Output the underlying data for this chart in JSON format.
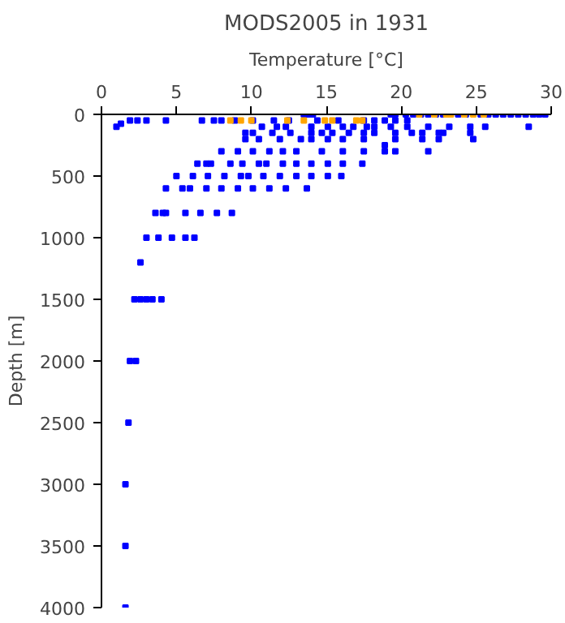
{
  "chart_data": {
    "type": "scatter",
    "title": "MODS2005 in 1931",
    "xlabel": "Temperature [°C]",
    "ylabel": "Depth [m]",
    "xlim": [
      0,
      30
    ],
    "xticks": [
      0,
      5,
      10,
      15,
      20,
      25,
      30
    ],
    "ylim": [
      4000,
      0
    ],
    "yticks": [
      0,
      500,
      1000,
      1500,
      2000,
      2500,
      3000,
      3500,
      4000
    ],
    "grid": false,
    "marker": "square",
    "series": [
      {
        "color": "#0000ff",
        "x": [
          13.5,
          13.8,
          14.1,
          19.3,
          19.6,
          20.3,
          20.8,
          21.3,
          21.8,
          22.3,
          22.8,
          23.8,
          24.3,
          25.3,
          25.8,
          26.3,
          26.8,
          27.3,
          27.8,
          28.3,
          28.8,
          29.2,
          29.6,
          1.0,
          1.3,
          1.9,
          2.4,
          3.0,
          4.3,
          6.7,
          7.5,
          8.0,
          8.9,
          10.1,
          11.5,
          12.5,
          14.4,
          15.8,
          17.5,
          18.2,
          18.9,
          19.6,
          20.4,
          10.7,
          11.7,
          12.3,
          14.0,
          15.1,
          16.1,
          16.8,
          17.7,
          18.2,
          19.3,
          20.4,
          21.8,
          23.2,
          24.6,
          25.6,
          28.5,
          9.6,
          10.1,
          11.4,
          12.6,
          14.0,
          14.7,
          15.4,
          16.5,
          17.5,
          18.2,
          19.6,
          20.7,
          21.4,
          22.5,
          22.8,
          24.6,
          9.6,
          10.5,
          11.9,
          13.3,
          14.0,
          15.1,
          16.1,
          17.5,
          19.6,
          21.4,
          22.5,
          24.8,
          18.9,
          8.0,
          9.1,
          10.1,
          11.2,
          12.1,
          13.0,
          14.7,
          16.1,
          17.5,
          18.9,
          19.6,
          21.8,
          6.4,
          7.0,
          7.3,
          8.6,
          9.4,
          10.5,
          11.0,
          12.1,
          13.0,
          14.0,
          15.1,
          16.1,
          17.4,
          5.0,
          6.1,
          7.1,
          8.2,
          9.3,
          9.8,
          10.8,
          11.9,
          13.0,
          14.0,
          15.1,
          16.0,
          4.3,
          5.4,
          5.9,
          7.0,
          8.0,
          9.1,
          10.1,
          11.2,
          12.3,
          13.7,
          3.6,
          4.1,
          4.3,
          5.6,
          6.6,
          7.7,
          8.7,
          3.0,
          3.8,
          4.7,
          5.6,
          6.2,
          2.6,
          2.2,
          2.6,
          3.0,
          3.4,
          4.0,
          1.9,
          2.3,
          1.8,
          1.6,
          1.6,
          1.6
        ],
        "values": [
          0,
          0,
          0,
          0,
          0,
          0,
          0,
          0,
          0,
          0,
          0,
          0,
          0,
          0,
          0,
          0,
          0,
          0,
          0,
          0,
          0,
          0,
          0,
          100,
          75,
          50,
          50,
          50,
          50,
          50,
          50,
          50,
          50,
          50,
          50,
          50,
          50,
          50,
          50,
          50,
          50,
          50,
          50,
          100,
          100,
          100,
          100,
          100,
          100,
          100,
          100,
          100,
          100,
          100,
          100,
          100,
          100,
          100,
          100,
          150,
          150,
          150,
          150,
          150,
          150,
          150,
          150,
          150,
          150,
          150,
          150,
          150,
          150,
          150,
          150,
          200,
          200,
          200,
          200,
          200,
          200,
          200,
          200,
          200,
          200,
          200,
          200,
          250,
          300,
          300,
          300,
          300,
          300,
          300,
          300,
          300,
          300,
          300,
          300,
          300,
          400,
          400,
          400,
          400,
          400,
          400,
          400,
          400,
          400,
          400,
          400,
          400,
          400,
          500,
          500,
          500,
          500,
          500,
          500,
          500,
          500,
          500,
          500,
          500,
          500,
          600,
          600,
          600,
          600,
          600,
          600,
          600,
          600,
          600,
          600,
          800,
          800,
          800,
          800,
          800,
          800,
          800,
          1000,
          1000,
          1000,
          1000,
          1000,
          1200,
          1500,
          1500,
          1500,
          1500,
          1500,
          2000,
          2000,
          2500,
          3000,
          3500,
          4000
        ]
      },
      {
        "color": "#ffa500",
        "x": [
          21.2,
          22.2,
          23.0,
          23.3,
          24.2,
          24.8,
          25.5,
          8.6,
          9.3,
          10.0,
          12.4,
          13.5,
          14.9,
          15.4,
          17.0,
          17.4
        ],
        "values": [
          0,
          0,
          0,
          0,
          0,
          0,
          0,
          50,
          50,
          50,
          50,
          50,
          50,
          50,
          50,
          50
        ]
      }
    ]
  }
}
